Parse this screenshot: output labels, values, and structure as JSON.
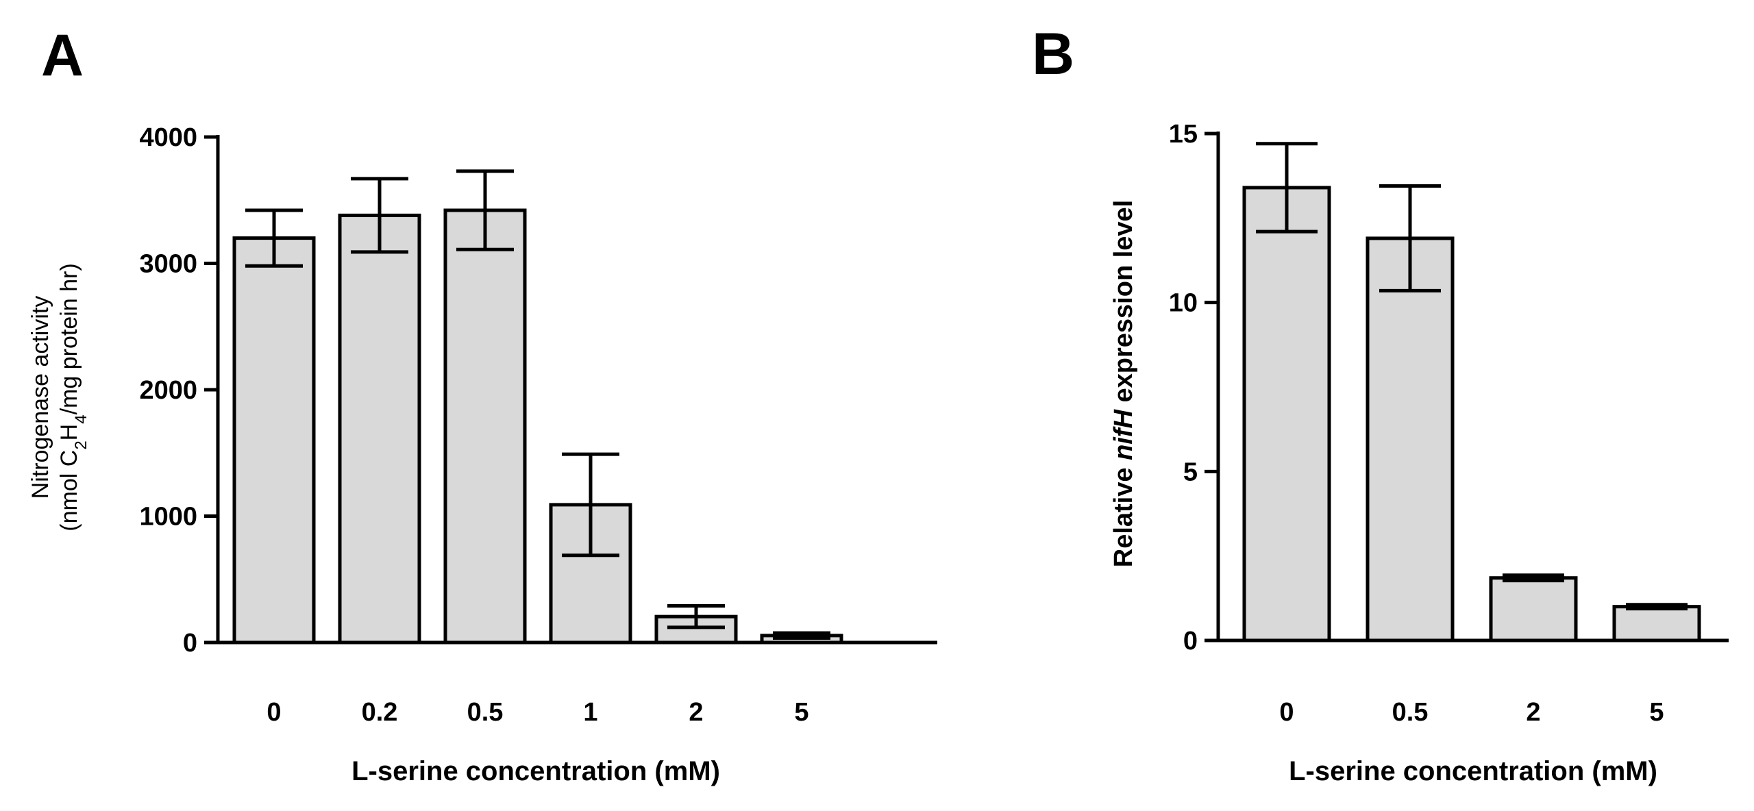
{
  "panels": {
    "a": {
      "letter": "A"
    },
    "b": {
      "letter": "B"
    }
  },
  "colors": {
    "bar_fill": "#d9d9d9",
    "stroke": "#000000"
  },
  "chart_data": [
    {
      "type": "bar",
      "panel": "A",
      "categories": [
        "0",
        "0.2",
        "0.5",
        "1",
        "2",
        "5"
      ],
      "values": [
        3200,
        3380,
        3420,
        1090,
        205,
        55
      ],
      "errors": [
        220,
        290,
        310,
        400,
        85,
        20
      ],
      "xlabel": "L-serine concentration (mM)",
      "ylabel_line1": "Nitrogenase activity",
      "ylabel_line2_pre": "(nmol C",
      "ylabel_sub1": "2",
      "ylabel_mid": "H",
      "ylabel_sub2": "4",
      "ylabel_post": "/mg protein hr)",
      "ylim": [
        0,
        4000
      ],
      "yticks": [
        "0",
        "1000",
        "2000",
        "3000",
        "4000"
      ]
    },
    {
      "type": "bar",
      "panel": "B",
      "categories": [
        "0",
        "0.5",
        "2",
        "5"
      ],
      "values": [
        13.4,
        11.9,
        1.85,
        1.0
      ],
      "errors": [
        1.3,
        1.55,
        0.08,
        0.06
      ],
      "xlabel": "L-serine concentration (mM)",
      "ylabel_pre": "Relative ",
      "ylabel_italic": "nifH",
      "ylabel_post": " expression level",
      "ylim": [
        0,
        15
      ],
      "yticks": [
        "0",
        "5",
        "10",
        "15"
      ]
    }
  ]
}
